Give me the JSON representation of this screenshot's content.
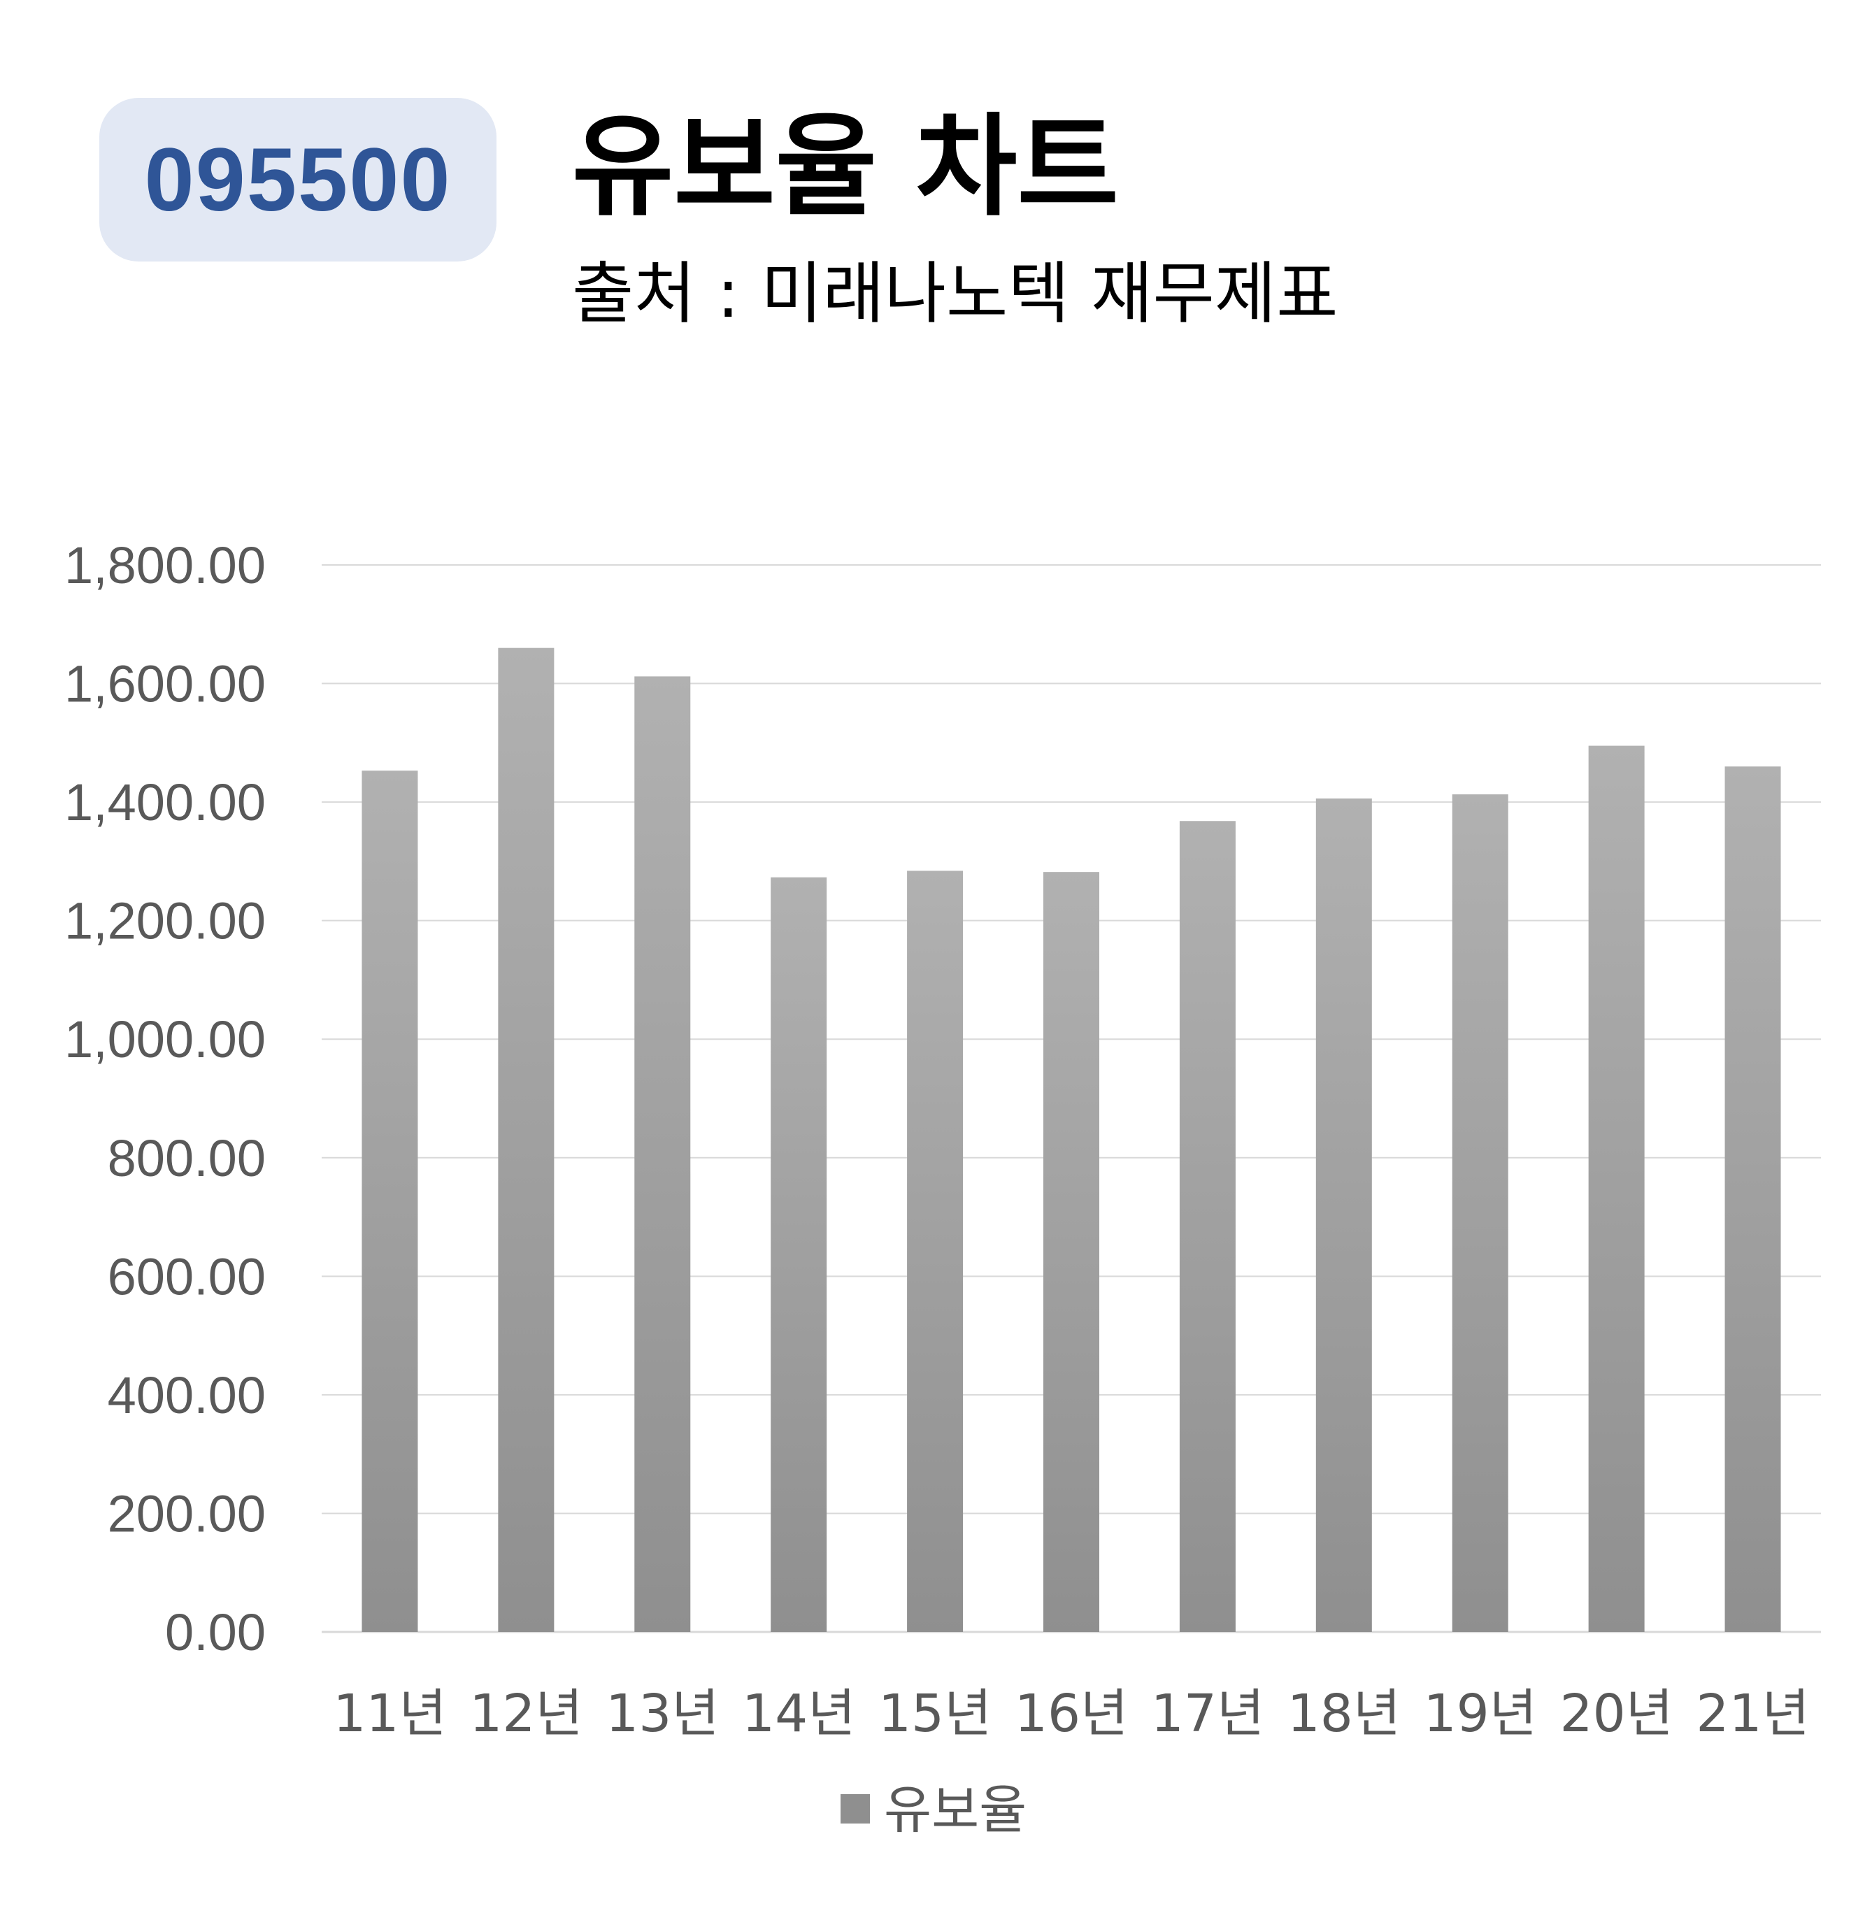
{
  "header": {
    "code": "095500",
    "title": "유보율 차트",
    "subtitle": "출처 : 미래나노텍 재무제표"
  },
  "colors": {
    "badge_bg": "#e2e8f4",
    "badge_text": "#2f5597",
    "bar_top": "#b1b1b1",
    "bar_bottom": "#8f8f8f",
    "grid": "#d9d9d9",
    "axis_text": "#595959"
  },
  "chart_data": {
    "type": "bar",
    "categories": [
      "11년",
      "12년",
      "13년",
      "14년",
      "15년",
      "16년",
      "17년",
      "18년",
      "19년",
      "20년",
      "21년"
    ],
    "series": [
      {
        "name": "유보율",
        "values": [
          1453,
          1660,
          1612,
          1273,
          1284,
          1282,
          1368,
          1406,
          1413,
          1495,
          1460
        ]
      }
    ],
    "yticks": [
      "0.00",
      "200.00",
      "400.00",
      "600.00",
      "800.00",
      "1,000.00",
      "1,200.00",
      "1,400.00",
      "1,600.00",
      "1,800.00"
    ],
    "ylim": [
      0,
      1800
    ],
    "grid": true,
    "legend_position": "bottom"
  }
}
